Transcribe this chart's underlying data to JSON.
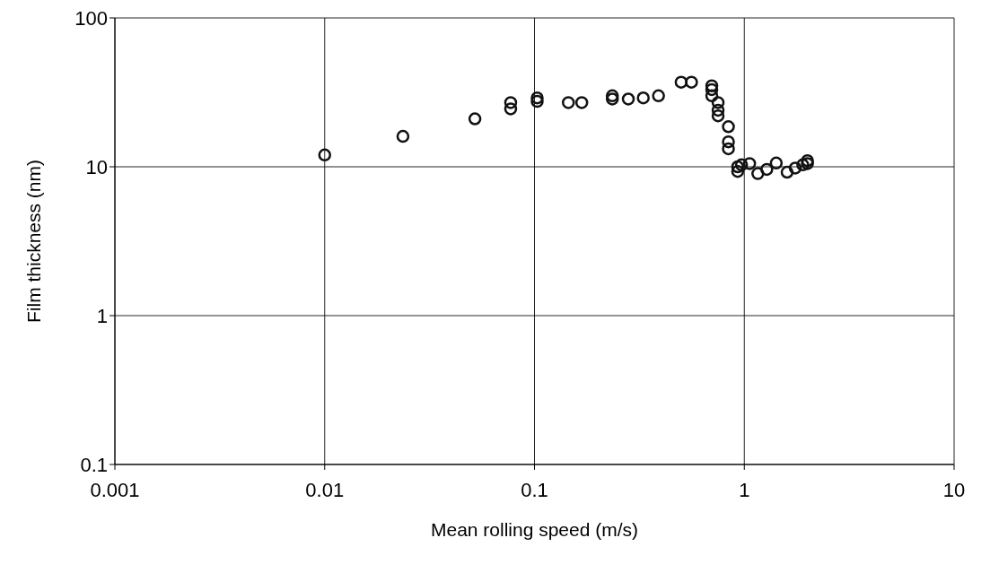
{
  "chart_data": {
    "type": "scatter",
    "xlabel": "Mean rolling speed (m/s)",
    "ylabel": "Film thickness (nm)",
    "log": "xy",
    "grid": true,
    "marker": "circle",
    "xlim": [
      0.001,
      10
    ],
    "xticks": [
      0.001,
      0.01,
      0.1,
      1,
      10
    ],
    "ylim": [
      0.1,
      100
    ],
    "yticks": [
      0.1,
      1,
      10,
      100
    ],
    "series": [
      {
        "color": "#111111",
        "x": [
          0.01,
          0.0236,
          0.052,
          0.077,
          0.077,
          0.103,
          0.103,
          0.145,
          0.168,
          0.235,
          0.235,
          0.28,
          0.33,
          0.39,
          0.5,
          0.56,
          0.7,
          0.7,
          0.7,
          0.75,
          0.75,
          0.75,
          0.84,
          0.84,
          0.84,
          0.93,
          0.93,
          0.97,
          1.06,
          1.16,
          1.28,
          1.42,
          1.6,
          1.75,
          1.9,
          2.0,
          2.0
        ],
        "values": [
          12,
          16,
          21,
          24.5,
          27,
          27.5,
          29,
          27,
          27,
          28.5,
          30,
          28.5,
          29,
          30,
          37,
          37,
          35,
          33,
          30,
          27,
          24,
          22,
          18.6,
          14.7,
          13.2,
          10,
          9.3,
          10.3,
          10.5,
          9,
          9.6,
          10.6,
          9.2,
          9.8,
          10.3,
          11,
          10.5
        ]
      }
    ]
  }
}
